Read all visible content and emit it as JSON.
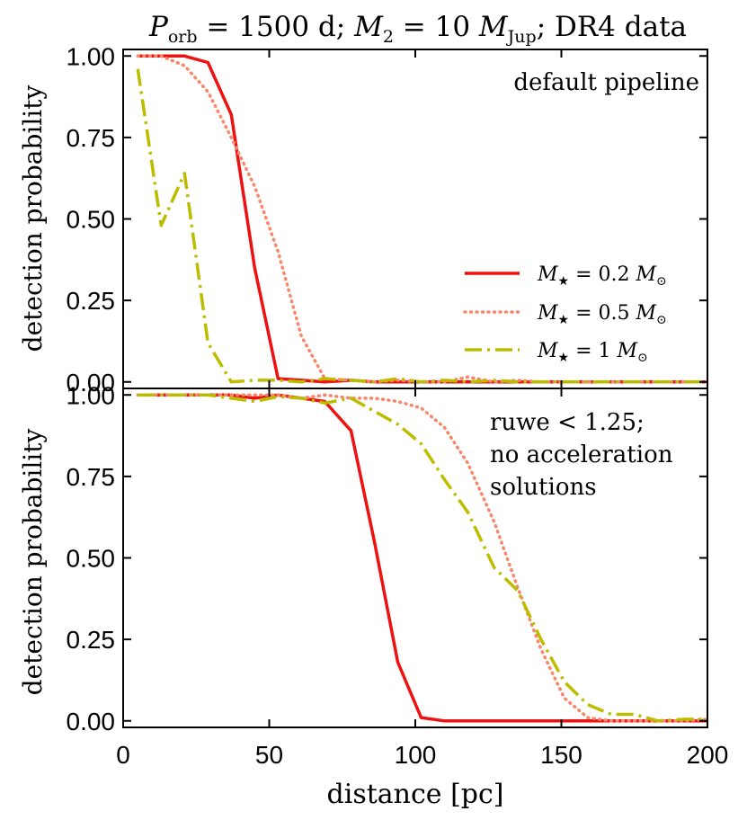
{
  "figure_title": {
    "porb_var": "P",
    "porb_sub": "orb",
    "porb_value": " = 1500 d;  ",
    "m2_var": "M",
    "m2_sub": "2",
    "m2_value": " = 10 ",
    "mjup_var": "M",
    "mjup_sub": "Jup",
    "tail": ";  DR4 data"
  },
  "legend": {
    "items": [
      {
        "var": "M",
        "sub": "★",
        "value": " = 0.2 ",
        "unit": "M",
        "unit_sub": "⊙"
      },
      {
        "var": "M",
        "sub": "★",
        "value": " = 0.5 ",
        "unit": "M",
        "unit_sub": "⊙"
      },
      {
        "var": "M",
        "sub": "★",
        "value": " = 1 ",
        "unit": "M",
        "unit_sub": "⊙"
      }
    ]
  },
  "colors": {
    "m02": "#ee1111",
    "m05": "#f8876b",
    "m1": "#bdbd00",
    "axis": "#000000"
  },
  "chart_data": [
    {
      "type": "line",
      "panel": "top",
      "annotation": [
        "default pipeline"
      ],
      "xlabel": "distance [pc]",
      "ylabel": "detection probability",
      "xlim": [
        0,
        200
      ],
      "ylim": [
        -0.02,
        1.02
      ],
      "xticks": [
        0,
        50,
        100,
        150,
        200
      ],
      "xtick_labels": [
        "0",
        "50",
        "100",
        "150",
        "200"
      ],
      "yticks": [
        0,
        0.25,
        0.5,
        0.75,
        1.0
      ],
      "ytick_labels": [
        "0.00",
        "0.25",
        "0.50",
        "0.75",
        "1.00"
      ],
      "x": [
        5,
        13,
        21,
        29,
        37,
        45,
        53,
        61,
        69,
        78,
        86,
        94,
        102,
        110,
        118,
        127,
        135,
        143,
        151,
        159,
        167,
        175,
        183,
        192,
        200
      ],
      "series": [
        {
          "name": "M⋆ = 0.2 M⊙",
          "style": "solid",
          "values": [
            1.0,
            1.0,
            1.0,
            0.98,
            0.82,
            0.35,
            0.01,
            0.005,
            0.0,
            0.005,
            0.0,
            0.0,
            0.0,
            0.0,
            0.0,
            0.0,
            0.0,
            0.0,
            0.0,
            0.0,
            0.0,
            0.0,
            0.0,
            0.0,
            0.0
          ]
        },
        {
          "name": "M⋆ = 0.5 M⊙",
          "style": "dotted",
          "values": [
            1.0,
            1.0,
            0.97,
            0.89,
            0.75,
            0.6,
            0.4,
            0.14,
            0.01,
            0.005,
            0.0,
            0.005,
            0.0,
            0.0,
            0.015,
            0.0,
            0.005,
            0.0,
            0.0,
            0.0,
            0.0,
            0.0,
            0.0,
            0.0,
            0.0
          ]
        },
        {
          "name": "M⋆ = 1 M⊙",
          "style": "dashdot",
          "values": [
            0.96,
            0.48,
            0.64,
            0.12,
            0.0,
            0.005,
            0.005,
            0.0,
            0.01,
            0.005,
            0.0,
            0.01,
            0.0,
            0.005,
            0.0,
            0.005,
            0.0,
            0.0,
            0.0,
            0.0,
            0.0,
            0.0,
            0.0,
            0.0,
            0.0
          ]
        }
      ]
    },
    {
      "type": "line",
      "panel": "bottom",
      "annotation": [
        "ruwe < 1.25;",
        "no acceleration",
        "solutions"
      ],
      "xlabel": "distance [pc]",
      "ylabel": "detection probability",
      "xlim": [
        0,
        200
      ],
      "ylim": [
        -0.02,
        1.02
      ],
      "xticks": [
        0,
        50,
        100,
        150,
        200
      ],
      "xtick_labels": [
        "0",
        "50",
        "100",
        "150",
        "200"
      ],
      "yticks": [
        0,
        0.25,
        0.5,
        0.75,
        1.0
      ],
      "ytick_labels": [
        "0.00",
        "0.25",
        "0.50",
        "0.75",
        "1.00"
      ],
      "x": [
        5,
        13,
        21,
        29,
        37,
        45,
        53,
        61,
        69,
        78,
        86,
        94,
        102,
        110,
        118,
        127,
        135,
        143,
        151,
        159,
        167,
        175,
        183,
        192,
        200
      ],
      "series": [
        {
          "name": "M⋆ = 0.2 M⊙",
          "style": "solid",
          "values": [
            1.0,
            1.0,
            1.0,
            1.0,
            1.0,
            0.99,
            1.0,
            0.99,
            0.98,
            0.89,
            0.55,
            0.18,
            0.01,
            0.0,
            0.0,
            0.0,
            0.0,
            0.0,
            0.0,
            0.0,
            0.0,
            0.0,
            0.0,
            0.0,
            0.0
          ]
        },
        {
          "name": "M⋆ = 0.5 M⊙",
          "style": "dotted",
          "values": [
            1.0,
            1.0,
            1.0,
            1.0,
            1.0,
            1.0,
            1.0,
            0.99,
            1.0,
            0.99,
            0.99,
            0.98,
            0.96,
            0.9,
            0.79,
            0.61,
            0.41,
            0.22,
            0.07,
            0.01,
            0.0,
            0.0,
            0.0,
            0.0,
            0.005
          ]
        },
        {
          "name": "M⋆ = 1 M⊙",
          "style": "dashdot",
          "values": [
            1.0,
            1.0,
            1.0,
            1.0,
            0.99,
            0.98,
            0.995,
            0.99,
            0.975,
            0.99,
            0.95,
            0.91,
            0.85,
            0.74,
            0.64,
            0.47,
            0.4,
            0.25,
            0.12,
            0.05,
            0.02,
            0.02,
            0.0,
            0.005,
            0.005
          ]
        }
      ]
    }
  ]
}
